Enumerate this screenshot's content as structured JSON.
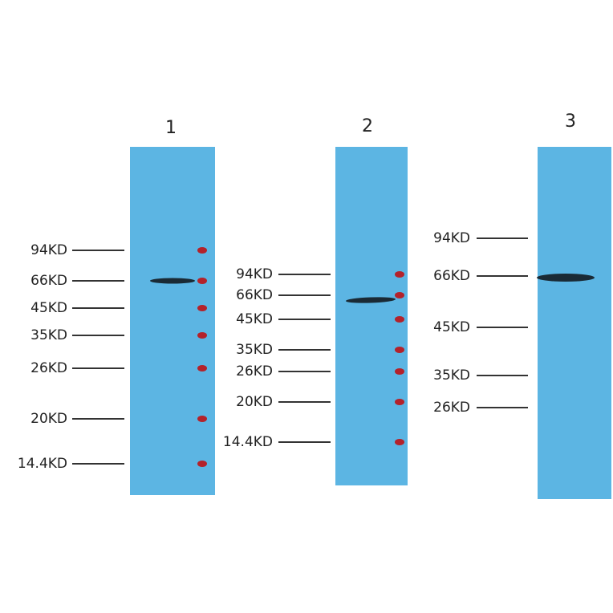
{
  "panels": [
    {
      "label": "1",
      "markers": [
        "94KD",
        "66KD",
        "45KD",
        "35KD",
        "26KD",
        "20KD",
        "14.4KD"
      ]
    },
    {
      "label": "2",
      "markers": [
        "94KD",
        "66KD",
        "45KD",
        "35KD",
        "26KD",
        "20KD",
        "14.4KD"
      ]
    },
    {
      "label": "3",
      "markers": [
        "94KD",
        "66KD",
        "45KD",
        "35KD",
        "26KD"
      ]
    }
  ]
}
